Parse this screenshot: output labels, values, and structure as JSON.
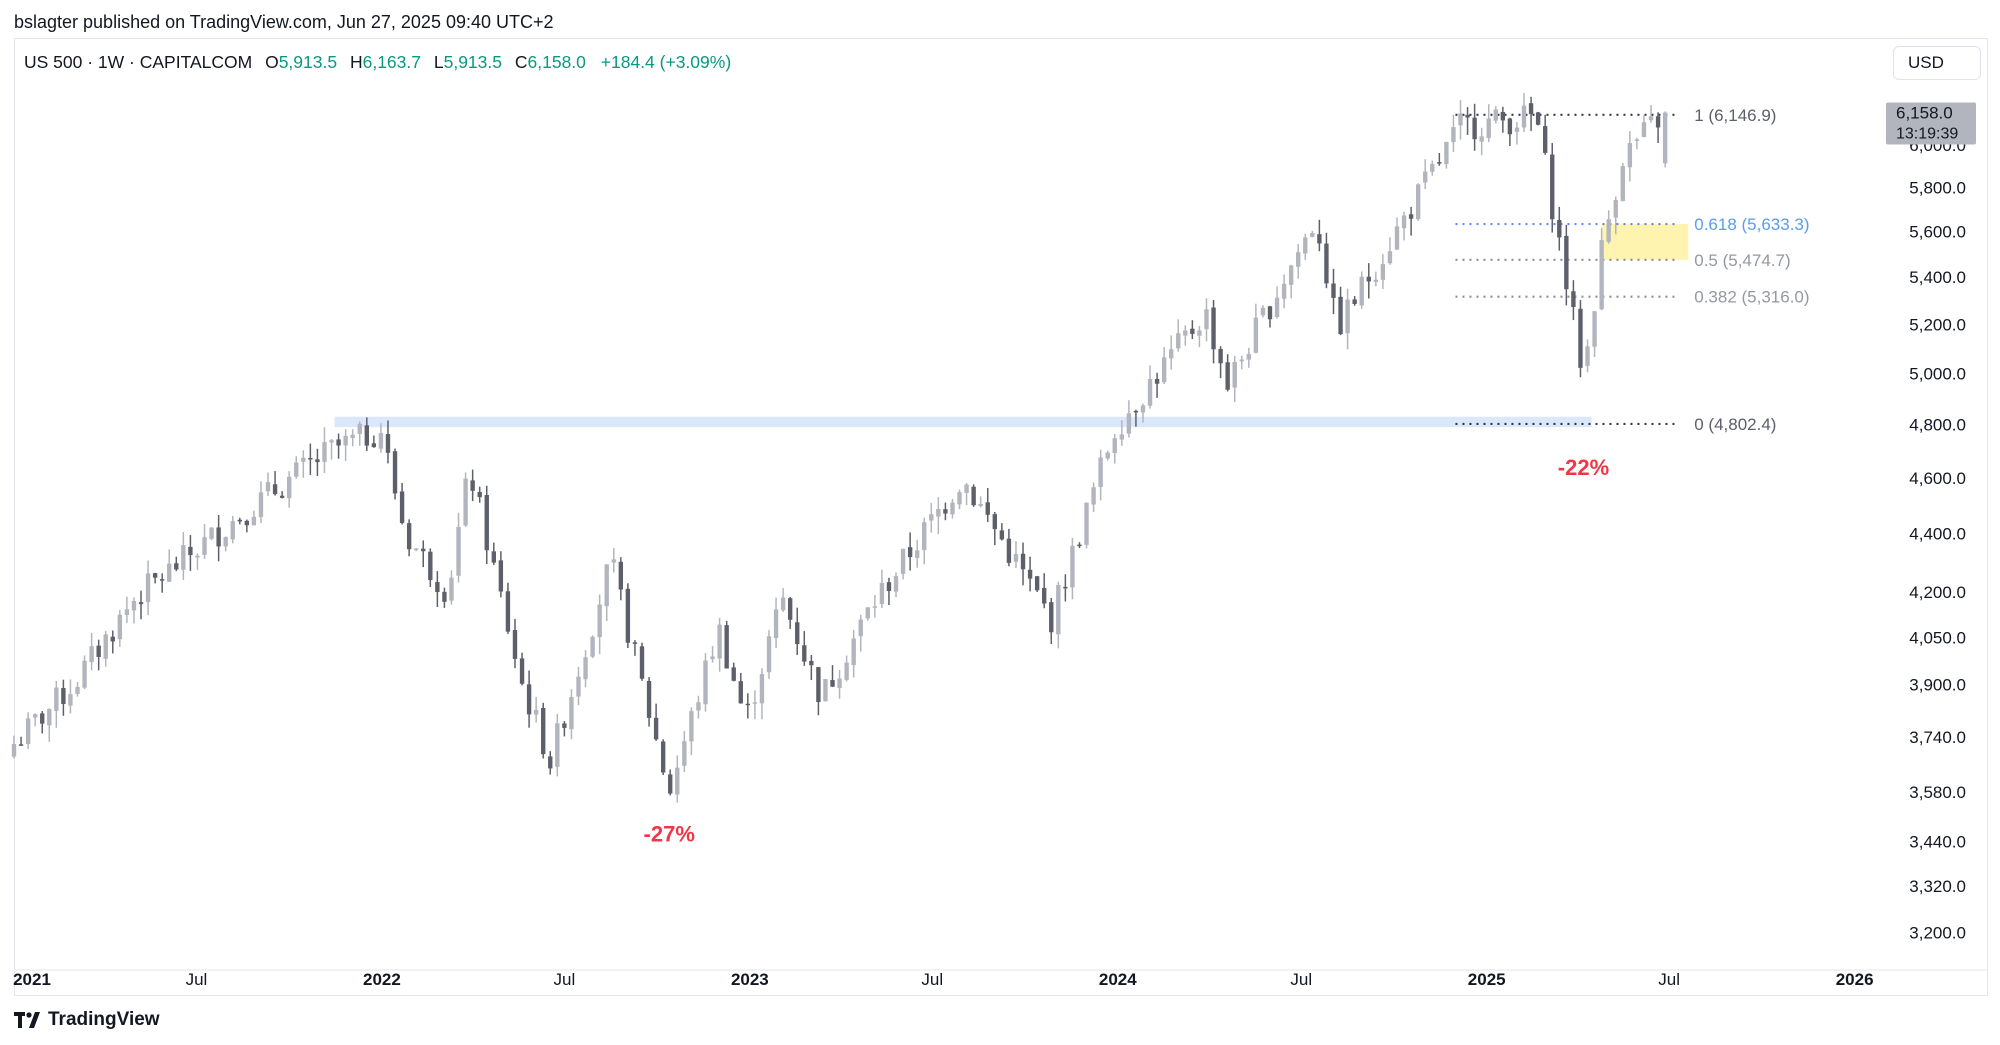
{
  "header": {
    "published_by": "bslagter published on TradingView.com, Jun 27, 2025 09:40 UTC+2"
  },
  "legend": {
    "symbol": "US 500 · 1W · CAPITALCOM",
    "open_label": "O",
    "open": "5,913.5",
    "high_label": "H",
    "high": "6,163.7",
    "low_label": "L",
    "low": "5,913.5",
    "close_label": "C",
    "close": "6,158.0",
    "change": "+184.4 (+3.09%)"
  },
  "currency": "USD",
  "footer": {
    "brand": "TradingView"
  },
  "colors": {
    "candle_up": "#b2b5be",
    "candle_down": "#5d606b",
    "fib_dot": "#787b86",
    "fib_blue": "#2962ff",
    "zone_yellow": "#fff3b0",
    "zone_blue": "#dbe7fb",
    "drawdown_red": "#f23645",
    "price_tag": "#b2b5be"
  },
  "chart_data": {
    "type": "candlestick",
    "timeframe": "1W",
    "y_scale": "log",
    "ylim": [
      3130,
      6300
    ],
    "y_ticks": [
      "3,200.0",
      "3,320.0",
      "3,440.0",
      "3,580.0",
      "3,740.0",
      "3,900.0",
      "4,050.0",
      "4,200.0",
      "4,400.0",
      "4,600.0",
      "4,800.0",
      "5,000.0",
      "5,200.0",
      "5,400.0",
      "5,600.0",
      "5,800.0",
      "6,000.0"
    ],
    "x_ticks": [
      {
        "label": "2021",
        "date": "2021-01-01",
        "bold": true
      },
      {
        "label": "Jul",
        "date": "2021-07-01",
        "bold": false
      },
      {
        "label": "2022",
        "date": "2022-01-01",
        "bold": true
      },
      {
        "label": "Jul",
        "date": "2022-07-01",
        "bold": false
      },
      {
        "label": "2023",
        "date": "2023-01-01",
        "bold": true
      },
      {
        "label": "Jul",
        "date": "2023-07-01",
        "bold": false
      },
      {
        "label": "2024",
        "date": "2024-01-01",
        "bold": true
      },
      {
        "label": "Jul",
        "date": "2024-07-01",
        "bold": false
      },
      {
        "label": "2025",
        "date": "2025-01-01",
        "bold": true
      },
      {
        "label": "Jul",
        "date": "2025-07-01",
        "bold": false
      },
      {
        "label": "2026",
        "date": "2026-01-01",
        "bold": true
      }
    ],
    "x_range": [
      "2021-01-01",
      "2026-02-15"
    ],
    "weekly_close_path": [
      [
        "2021-01-01",
        3720
      ],
      [
        "2021-03-01",
        3900
      ],
      [
        "2021-05-01",
        4180
      ],
      [
        "2021-08-15",
        4470
      ],
      [
        "2021-11-10",
        4700
      ],
      [
        "2021-12-31",
        4780
      ],
      [
        "2022-01-24",
        4400
      ],
      [
        "2022-03-07",
        4200
      ],
      [
        "2022-03-29",
        4630
      ],
      [
        "2022-05-20",
        3900
      ],
      [
        "2022-06-17",
        3670
      ],
      [
        "2022-08-16",
        4300
      ],
      [
        "2022-10-13",
        3580
      ],
      [
        "2022-12-01",
        4080
      ],
      [
        "2022-12-28",
        3790
      ],
      [
        "2023-02-02",
        4180
      ],
      [
        "2023-03-13",
        3860
      ],
      [
        "2023-05-01",
        4150
      ],
      [
        "2023-07-31",
        4600
      ],
      [
        "2023-10-27",
        4110
      ],
      [
        "2023-12-28",
        4780
      ],
      [
        "2024-03-28",
        5250
      ],
      [
        "2024-04-19",
        4960
      ],
      [
        "2024-07-16",
        5660
      ],
      [
        "2024-08-05",
        5180
      ],
      [
        "2024-12-06",
        6090
      ],
      [
        "2025-02-19",
        6140
      ],
      [
        "2025-04-07",
        4990
      ],
      [
        "2025-04-25",
        5520
      ],
      [
        "2025-05-16",
        5950
      ],
      [
        "2025-06-27",
        6158
      ]
    ],
    "last_price": 6158.0,
    "last_price_label": "6,158.0",
    "bar_countdown": "13:19:39",
    "fib_retracement": {
      "start_date": "2024-12-01",
      "end_date": "2025-04-30",
      "levels": [
        {
          "ratio": "1",
          "price": 6146.9,
          "label": "1 (6,146.9)",
          "highlight": false
        },
        {
          "ratio": "0.618",
          "price": 5633.3,
          "label": "0.618 (5,633.3)",
          "highlight": true
        },
        {
          "ratio": "0.5",
          "price": 5474.7,
          "label": "0.5 (5,474.7)",
          "highlight": false
        },
        {
          "ratio": "0.382",
          "price": 5316.0,
          "label": "0.382 (5,316.0)",
          "highlight": false
        },
        {
          "ratio": "0",
          "price": 4802.4,
          "label": "0 (4,802.4)",
          "highlight": false
        }
      ],
      "golden_zone": {
        "from_date": "2025-04-25",
        "to_date": "2025-07-20",
        "low": 5474.7,
        "high": 5633.3
      }
    },
    "support_zone": {
      "from_date": "2021-11-15",
      "to_date": "2025-04-15",
      "low": 4790,
      "high": 4830
    },
    "annotations": [
      {
        "text": "-27%",
        "date": "2022-10-13",
        "price": 3440
      },
      {
        "text": "-22%",
        "date": "2025-04-07",
        "price": 4610
      }
    ]
  }
}
